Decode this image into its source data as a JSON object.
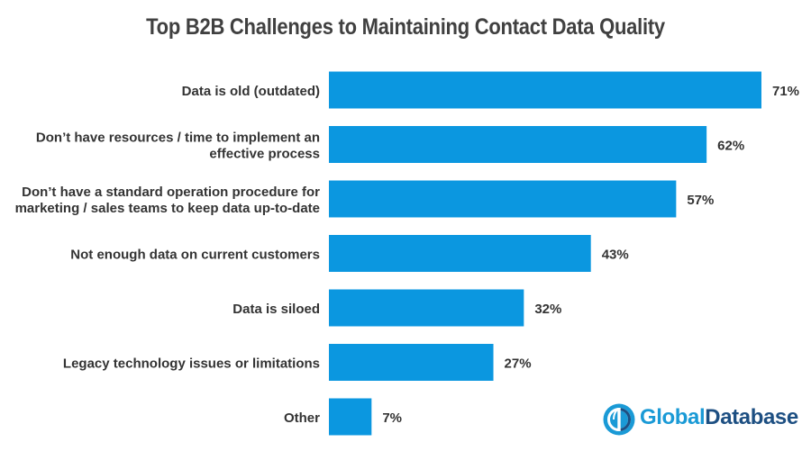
{
  "colors": {
    "bar": "#0b97e0",
    "label_text": "#333333",
    "title_text": "#404040",
    "logo_light": "#1a9ad6",
    "logo_dark": "#1d4f82"
  },
  "brand": {
    "word1": "Global",
    "word2": "Database",
    "icon": "globe-logo-icon"
  },
  "chart_data": {
    "type": "bar",
    "orientation": "horizontal",
    "title": "Top B2B Challenges to Maintaining Contact Data Quality",
    "xlabel": "",
    "ylabel": "",
    "value_format": "percent",
    "grid": false,
    "xlim": [
      0,
      71
    ],
    "categories": [
      [
        "Data is old (outdated)"
      ],
      [
        "Don’t have resources / time to implement an",
        "effective process"
      ],
      [
        "Don’t have a standard operation procedure for",
        "marketing / sales teams to keep data up-to-date"
      ],
      [
        "Not enough data on current customers"
      ],
      [
        "Data is siloed"
      ],
      [
        "Legacy technology issues or limitations"
      ],
      [
        "Other"
      ]
    ],
    "values": [
      71,
      62,
      57,
      43,
      32,
      27,
      7
    ],
    "labels": [
      "71%",
      "62%",
      "57%",
      "43%",
      "32%",
      "27%",
      "7%"
    ]
  }
}
